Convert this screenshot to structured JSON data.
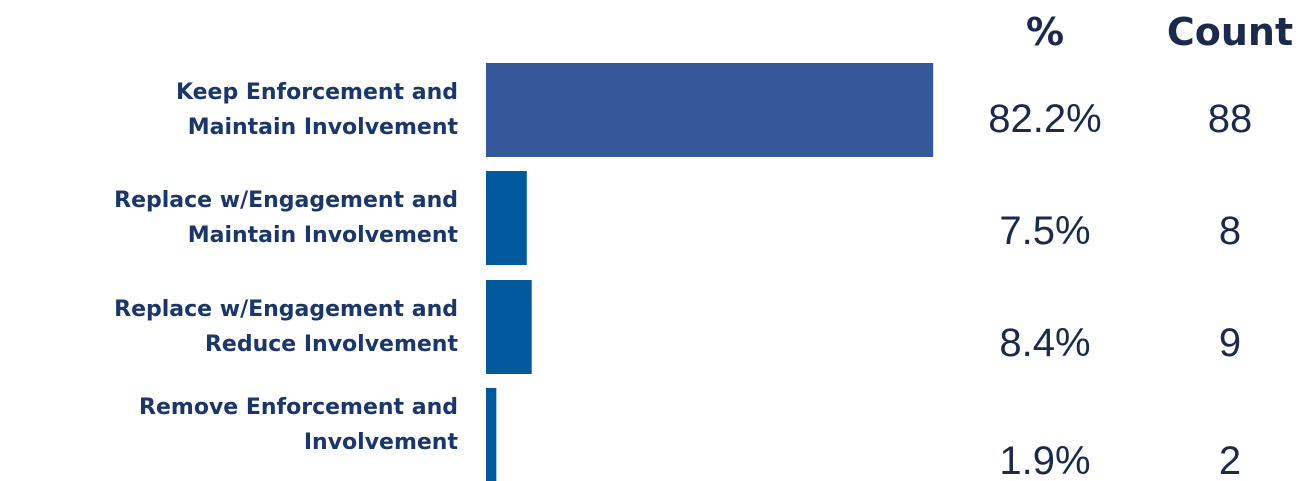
{
  "chart_data": {
    "type": "bar",
    "orientation": "horizontal",
    "categories": [
      "Keep Enforcement and\nMaintain Involvement",
      "Replace w/Engagement and\nMaintain Involvement",
      "Replace w/Engagement and\nReduce Involvement",
      "Remove Enforcement and\nInvolvement"
    ],
    "values": [
      82.2,
      7.5,
      8.4,
      1.9
    ],
    "value_labels": [
      "82.2%",
      "7.5%",
      "8.4%",
      "1.9%"
    ],
    "value_header": "%",
    "counts": [
      88,
      8,
      9,
      2
    ],
    "count_header": "Count",
    "colors": [
      "#34589a",
      "#005a9c",
      "#005a9c",
      "#005a9c"
    ]
  }
}
